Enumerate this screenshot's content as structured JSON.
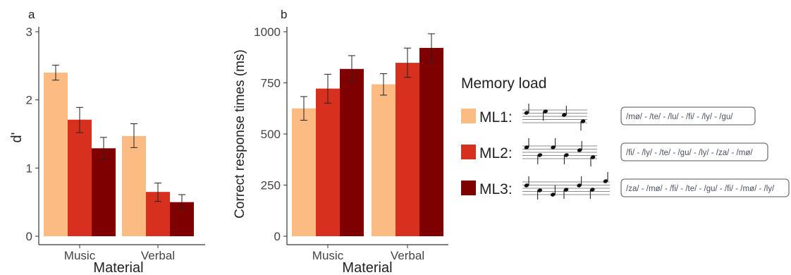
{
  "chart_data": [
    {
      "type": "bar",
      "panel_label": "a",
      "categories": [
        "Music",
        "Verbal"
      ],
      "xlabel": "Material",
      "ylabel": "d'",
      "ylim": [
        0,
        3
      ],
      "yticks": [
        0,
        1,
        2,
        3
      ],
      "grid": false,
      "series": [
        {
          "name": "ML1",
          "values": [
            2.4,
            1.47
          ],
          "err_low": [
            2.29,
            1.3
          ],
          "err_high": [
            2.51,
            1.65
          ]
        },
        {
          "name": "ML2",
          "values": [
            1.71,
            0.65
          ],
          "err_low": [
            1.52,
            0.51
          ],
          "err_high": [
            1.89,
            0.78
          ]
        },
        {
          "name": "ML3",
          "values": [
            1.29,
            0.5
          ],
          "err_low": [
            1.13,
            0.4
          ],
          "err_high": [
            1.45,
            0.61
          ]
        }
      ]
    },
    {
      "type": "bar",
      "panel_label": "b",
      "categories": [
        "Music",
        "Verbal"
      ],
      "xlabel": "Material",
      "ylabel": "Correct response times (ms)",
      "ylim": [
        0,
        1000
      ],
      "yticks": [
        0,
        250,
        500,
        750,
        1000
      ],
      "grid": false,
      "series": [
        {
          "name": "ML1",
          "values": [
            625,
            743
          ],
          "err_low": [
            567,
            690
          ],
          "err_high": [
            683,
            795
          ]
        },
        {
          "name": "ML2",
          "values": [
            722,
            848
          ],
          "err_low": [
            651,
            777
          ],
          "err_high": [
            792,
            920
          ]
        },
        {
          "name": "ML3",
          "values": [
            818,
            921
          ],
          "err_low": [
            755,
            852
          ],
          "err_high": [
            883,
            990
          ]
        }
      ]
    }
  ],
  "legend": {
    "title": "Memory load",
    "placement": "right",
    "items": [
      {
        "label": "ML1:",
        "color": "#FDBB84",
        "notes": 4,
        "syllables": "/mø/ - /te/ - /lu/ - /fi/ - /ly/ - /gu/"
      },
      {
        "label": "ML2:",
        "color": "#D7301F",
        "notes": 6,
        "syllables": "/fi/ - /ly/ - /te/ - /gu/ - /ly/ - /za/ - /mø/"
      },
      {
        "label": "ML3:",
        "color": "#7F0000",
        "notes": 7,
        "syllables": "/za/ - /mø/ - /fi/ - /te/ - /gu/ - /fi/ - /mø/ - /ly/"
      }
    ]
  },
  "colors": {
    "ML1": "#FDBB84",
    "ML2": "#D7301F",
    "ML3": "#7F0000",
    "axis": "#333333",
    "text": "#444444"
  }
}
